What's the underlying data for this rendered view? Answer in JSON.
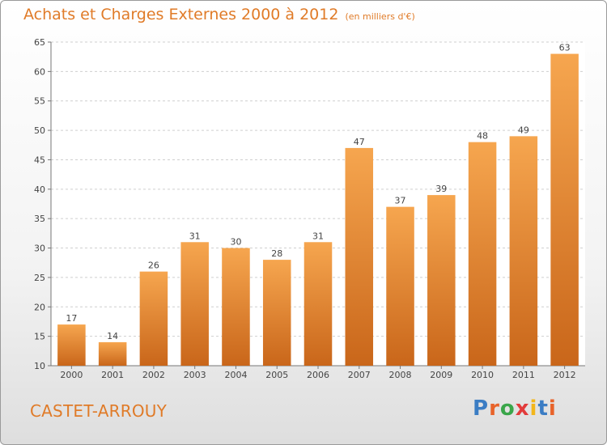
{
  "header": {
    "title": "Achats et Charges Externes 2000 à 2012",
    "subtitle": "(en milliers d'€)"
  },
  "footer": {
    "place": "CASTET-ARROUY",
    "logo_text": "Proxiti"
  },
  "colors": {
    "accent": "#e07b28",
    "bar_light": "#f6a64f",
    "bar_dark": "#c9661a"
  },
  "chart_data": {
    "type": "bar",
    "title": "Achats et Charges Externes 2000 à 2012",
    "subtitle": "(en milliers d'€)",
    "categories": [
      "2000",
      "2001",
      "2002",
      "2003",
      "2004",
      "2005",
      "2006",
      "2007",
      "2008",
      "2009",
      "2010",
      "2011",
      "2012"
    ],
    "values": [
      17,
      14,
      26,
      31,
      30,
      28,
      31,
      47,
      37,
      39,
      48,
      49,
      63
    ],
    "ylim": [
      10,
      65
    ],
    "yticks": [
      10,
      15,
      20,
      25,
      30,
      35,
      40,
      45,
      50,
      55,
      60,
      65
    ],
    "grid": true,
    "data_labels": true
  }
}
